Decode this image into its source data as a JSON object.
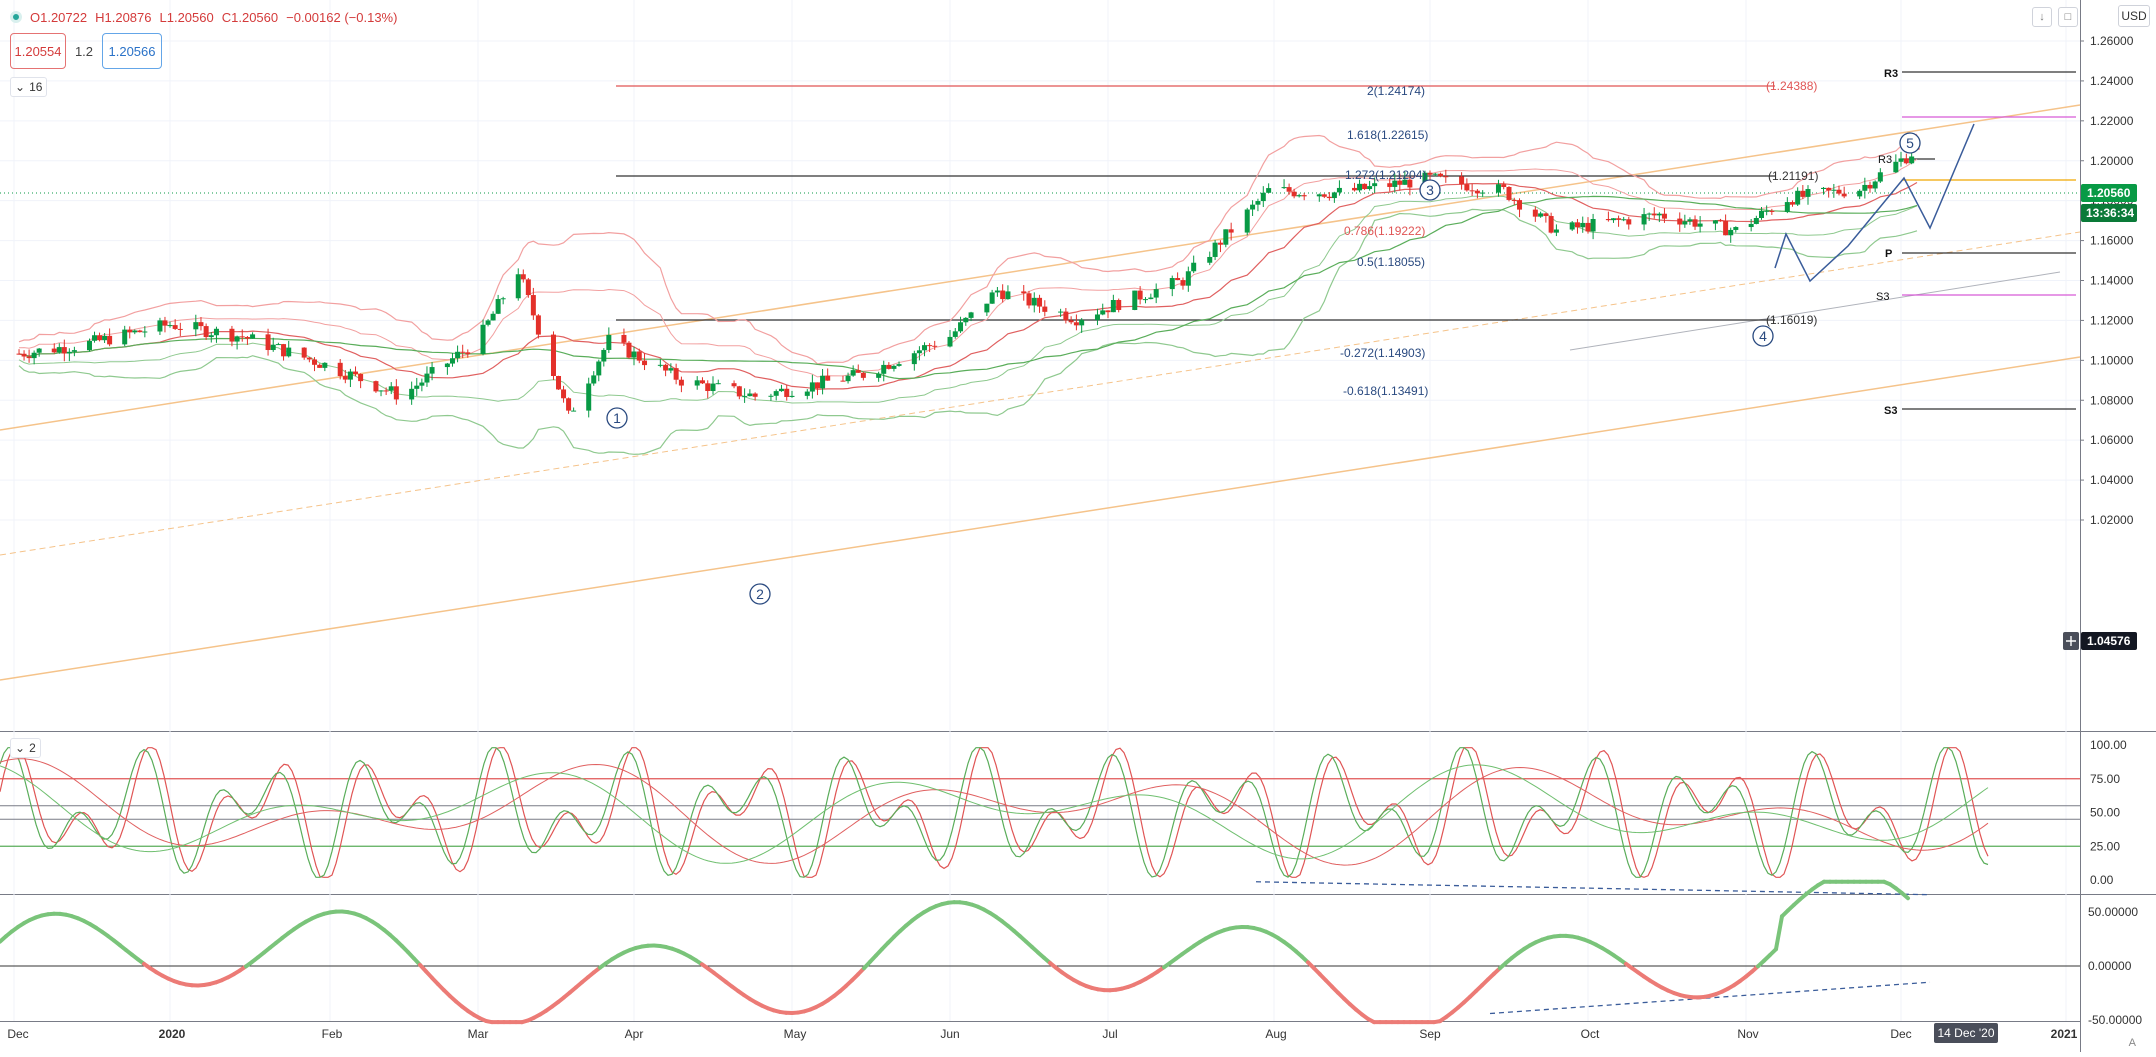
{
  "instrument": {
    "open": "O1.20722",
    "high": "H1.20876",
    "low": "L1.20560",
    "close": "C1.20560",
    "change": "−0.00162 (−0.13%)",
    "sell_price": "1.20554",
    "spread": "1.2",
    "buy_price": "1.20566"
  },
  "toolbar": {
    "currency": "USD",
    "auto_label": "A"
  },
  "legend": {
    "main_count": "16",
    "pane2_count": "2"
  },
  "price_axis": {
    "ticks": [
      "1.26000",
      "1.24000",
      "1.22000",
      "1.20000",
      "1.18000",
      "1.16000",
      "1.14000",
      "1.12000",
      "1.10000",
      "1.08000",
      "1.06000",
      "1.04000",
      "1.02000"
    ],
    "current_price": "1.20560",
    "countdown": "13:36:34",
    "cursor_price": "1.04576"
  },
  "stoch_axis": {
    "ticks": [
      "100.00",
      "75.00",
      "50.00",
      "25.00",
      "0.00"
    ]
  },
  "osc_axis": {
    "ticks": [
      "50.00000",
      "0.00000",
      "-50.00000"
    ]
  },
  "time_axis": {
    "labels": [
      "Dec",
      "2020",
      "Feb",
      "Mar",
      "Apr",
      "May",
      "Jun",
      "Jul",
      "Aug",
      "Sep",
      "Oct",
      "Nov",
      "Dec",
      "2021"
    ],
    "cursor_date": "14 Dec '20"
  },
  "fib_labels": [
    "2(1.24174)",
    "1.618(1.22615)",
    "1.272(1.21204)",
    "0.786(1.19222)",
    "0.5(1.18055)",
    "-0.272(1.14903)",
    "-0.618(1.13491)"
  ],
  "level_labels": {
    "top_red": "(1.24388)",
    "mid_black": "(1.21191)",
    "low_black": "(1.16019)"
  },
  "pivots": {
    "r3_top": "R3",
    "r3_mid": "R3",
    "p": "P",
    "s3_mid": "S3",
    "s3_low": "S3"
  },
  "waves": [
    "1",
    "2",
    "3",
    "4",
    "5"
  ],
  "colors": {
    "up": "#089a45",
    "down": "#e3302a",
    "envelope": "#f2a0a0",
    "band": "#8fc98f",
    "channel": "#f5c38a",
    "fib": "#2a4a80",
    "current": "#089a45",
    "pink": "#d65bd6"
  },
  "chart_data": [
    {
      "type": "candlestick",
      "pane": "price",
      "ylim": [
        1.02,
        1.26
      ],
      "x": [
        "2019-12-01",
        "2019-12-15",
        "2020-01-01",
        "2020-01-15",
        "2020-02-01",
        "2020-02-15",
        "2020-03-01",
        "2020-03-09",
        "2020-03-19",
        "2020-03-27",
        "2020-04-10",
        "2020-04-24",
        "2020-05-15",
        "2020-06-01",
        "2020-06-10",
        "2020-06-25",
        "2020-07-15",
        "2020-07-31",
        "2020-08-14",
        "2020-09-01",
        "2020-09-15",
        "2020-09-25",
        "2020-10-15",
        "2020-10-30",
        "2020-11-09",
        "2020-11-23",
        "2020-12-04"
      ],
      "close": [
        1.103,
        1.108,
        1.118,
        1.112,
        1.097,
        1.082,
        1.11,
        1.145,
        1.072,
        1.11,
        1.09,
        1.082,
        1.093,
        1.112,
        1.135,
        1.121,
        1.14,
        1.185,
        1.184,
        1.191,
        1.185,
        1.165,
        1.173,
        1.165,
        1.181,
        1.186,
        1.2056
      ]
    },
    {
      "type": "line",
      "pane": "stochastic",
      "ylim": [
        0,
        100
      ],
      "levels": [
        75,
        25
      ]
    },
    {
      "type": "line",
      "pane": "oscillator",
      "ylim": [
        -60,
        80
      ],
      "levels": [
        0
      ]
    }
  ]
}
